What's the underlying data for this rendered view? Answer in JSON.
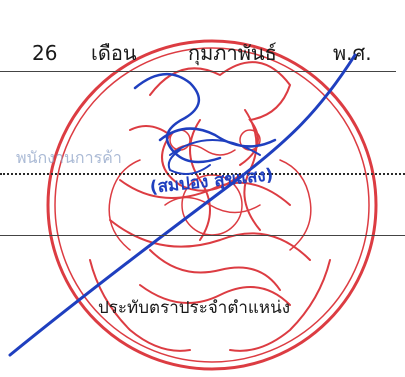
{
  "date_line": {
    "day": "26",
    "month_word": "เดือน",
    "month": "กุมภาพันธ์",
    "era": "พ.ศ."
  },
  "faint_label": "พนักงานการค้า",
  "signature_name": "(สมปอง สุขแสง)",
  "caption": "ประทับตราประจำตำแหน่ง",
  "colors": {
    "seal_red": "#d9272e",
    "ink_blue": "#1f3fbf",
    "text": "#1a1a1a"
  },
  "icons": [
    "official-seal-icon",
    "signature-icon"
  ]
}
